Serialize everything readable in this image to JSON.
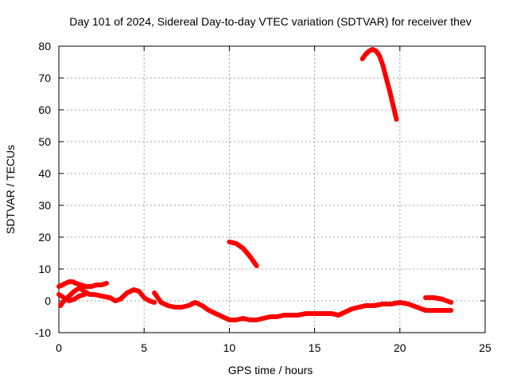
{
  "chart_data": {
    "type": "line",
    "title": "Day 101 of 2024, Sidereal Day-to-day VTEC variation (SDTVAR) for receiver thev",
    "xlabel": "GPS time / hours",
    "ylabel": "SDTVAR / TECUs",
    "xlim": [
      0,
      25
    ],
    "ylim": [
      -10,
      80
    ],
    "xticks": [
      0,
      5,
      10,
      15,
      20,
      25
    ],
    "yticks": [
      -10,
      0,
      10,
      20,
      30,
      40,
      50,
      60,
      70,
      80
    ],
    "grid": true,
    "series_color": "#ff0000",
    "series": [
      {
        "name": "segment-1",
        "x": [
          0.0,
          0.2,
          0.4,
          0.6,
          0.8,
          1.0,
          1.3,
          1.6,
          1.9,
          2.2,
          2.5,
          2.8
        ],
        "y": [
          4.5,
          5.0,
          5.5,
          6.0,
          6.0,
          5.5,
          5.0,
          4.5,
          4.5,
          5.0,
          5.0,
          5.5
        ]
      },
      {
        "name": "segment-2",
        "x": [
          0.1,
          0.3,
          0.6,
          0.9,
          1.2,
          1.5,
          1.8,
          2.1,
          2.5,
          3.0,
          3.3,
          3.6,
          4.0,
          4.4,
          4.7,
          5.0,
          5.3,
          5.6
        ],
        "y": [
          -1.5,
          0.0,
          1.5,
          3.0,
          4.0,
          3.0,
          2.0,
          2.0,
          1.5,
          1.0,
          0.0,
          0.5,
          2.5,
          3.5,
          3.0,
          1.0,
          0.0,
          -0.5
        ]
      },
      {
        "name": "segment-3",
        "x": [
          0.0,
          0.3,
          0.6,
          0.9,
          1.2,
          1.5
        ],
        "y": [
          2.0,
          1.0,
          0.0,
          0.5,
          1.5,
          2.0
        ]
      },
      {
        "name": "segment-4",
        "x": [
          5.6,
          6.0,
          6.4,
          6.8,
          7.2,
          7.6,
          8.0,
          8.4,
          8.8,
          9.2,
          9.6,
          10.0,
          10.4,
          10.8,
          11.2,
          11.6,
          12.0,
          12.4,
          12.8,
          13.2,
          13.6,
          14.0,
          14.5,
          15.0,
          15.5,
          16.0,
          16.4,
          16.8,
          17.2,
          17.6,
          18.0,
          18.5,
          19.0,
          19.5,
          20.0,
          20.5,
          21.0,
          21.5,
          22.0,
          22.5,
          23.0
        ],
        "y": [
          2.5,
          -0.5,
          -1.5,
          -2.0,
          -2.0,
          -1.5,
          -0.5,
          -1.5,
          -3.0,
          -4.0,
          -5.0,
          -6.0,
          -6.0,
          -5.5,
          -6.0,
          -6.0,
          -5.5,
          -5.0,
          -5.0,
          -4.5,
          -4.5,
          -4.5,
          -4.0,
          -4.0,
          -4.0,
          -4.0,
          -4.5,
          -3.5,
          -2.5,
          -2.0,
          -1.5,
          -1.5,
          -1.0,
          -1.0,
          -0.5,
          -1.0,
          -2.0,
          -3.0,
          -3.0,
          -3.0,
          -3.0
        ]
      },
      {
        "name": "segment-5",
        "x": [
          10.0,
          10.4,
          10.8,
          11.2,
          11.6
        ],
        "y": [
          18.5,
          18.0,
          16.5,
          14.0,
          11.0
        ]
      },
      {
        "name": "segment-6",
        "x": [
          17.8,
          18.0,
          18.2,
          18.4,
          18.6,
          18.8,
          19.0,
          19.2,
          19.4,
          19.6,
          19.8
        ],
        "y": [
          76.0,
          77.5,
          78.5,
          79.0,
          78.5,
          77.0,
          74.0,
          70.0,
          66.0,
          61.5,
          57.0
        ]
      },
      {
        "name": "segment-7",
        "x": [
          21.5,
          22.0,
          22.5,
          23.0
        ],
        "y": [
          1.0,
          1.0,
          0.5,
          -0.5
        ]
      }
    ]
  }
}
